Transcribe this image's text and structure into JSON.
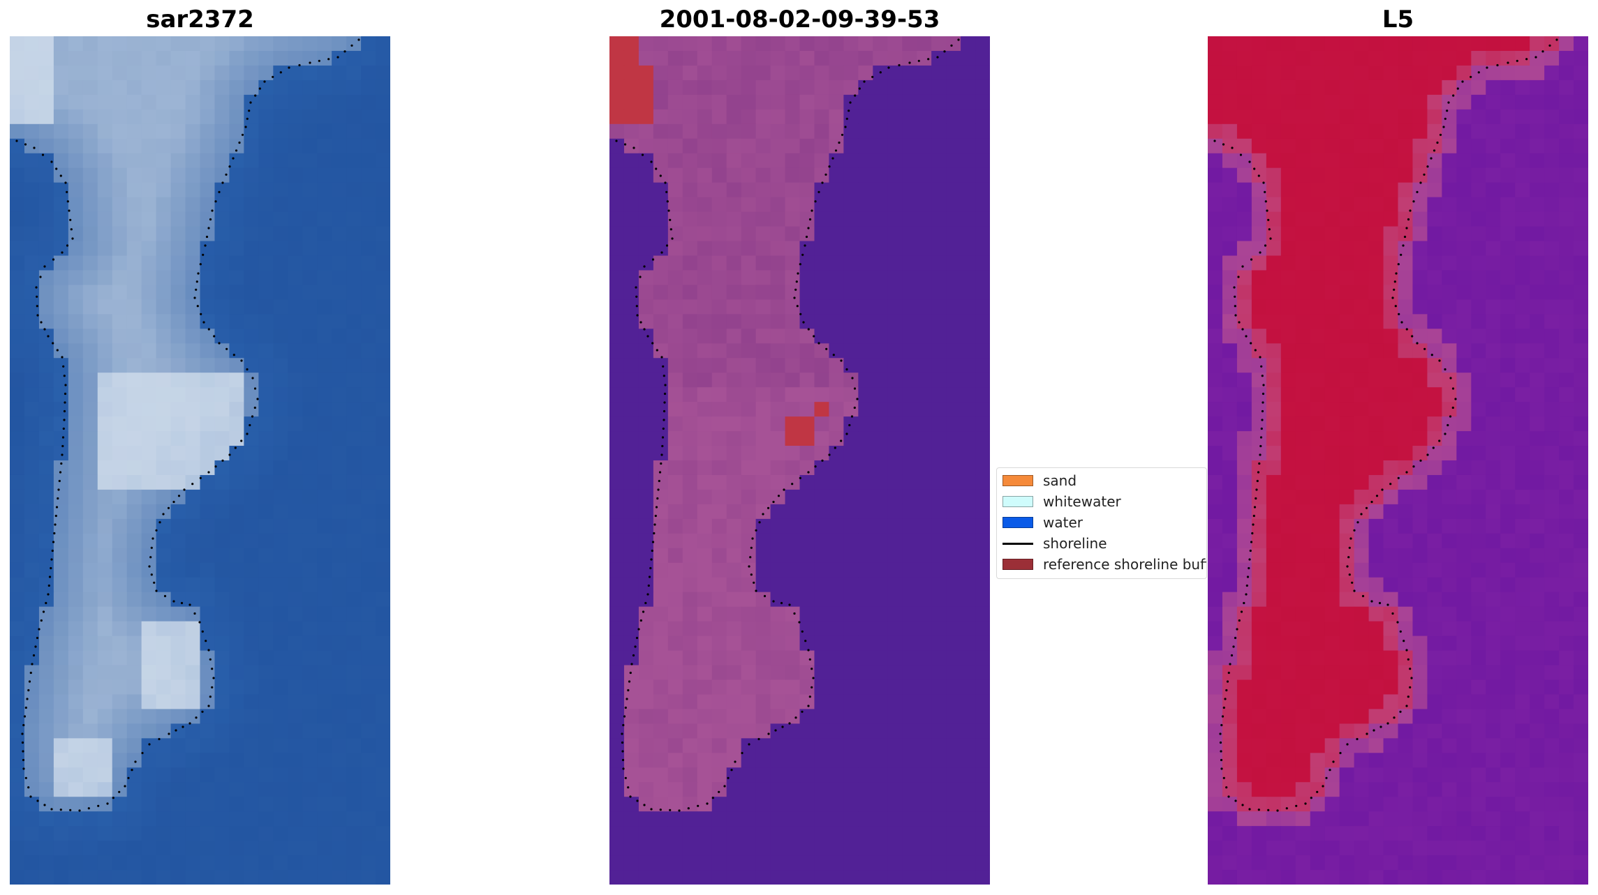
{
  "panels": [
    {
      "id": "rgb",
      "title": "sar2372"
    },
    {
      "id": "classified",
      "title": "2001-08-02-09-39-53"
    },
    {
      "id": "index",
      "title": "L5"
    }
  ],
  "legend": {
    "items": [
      {
        "label": "sand",
        "kind": "patch",
        "color": "#f58a3a"
      },
      {
        "label": "whitewater",
        "kind": "patch",
        "color": "#cffcfc"
      },
      {
        "label": "water",
        "kind": "patch",
        "color": "#0a5be8"
      },
      {
        "label": "shoreline",
        "kind": "line",
        "color": "#000000"
      },
      {
        "label": "reference shoreline buffer",
        "kind": "patch",
        "color": "#9b2f37"
      }
    ]
  },
  "colors": {
    "rgb_water": "#2558a3",
    "rgb_sand": "#9cb4d4",
    "rgb_bright": "#dde7f2",
    "classified_water": "#522196",
    "classified_land": "#8a3c8a",
    "classified_light": "#a65296",
    "classified_red": "#c03644",
    "index_land": "#c3113f",
    "index_water": "#7a1fa3",
    "index_edge": "#c0558f",
    "shoreline": "#000000"
  }
}
